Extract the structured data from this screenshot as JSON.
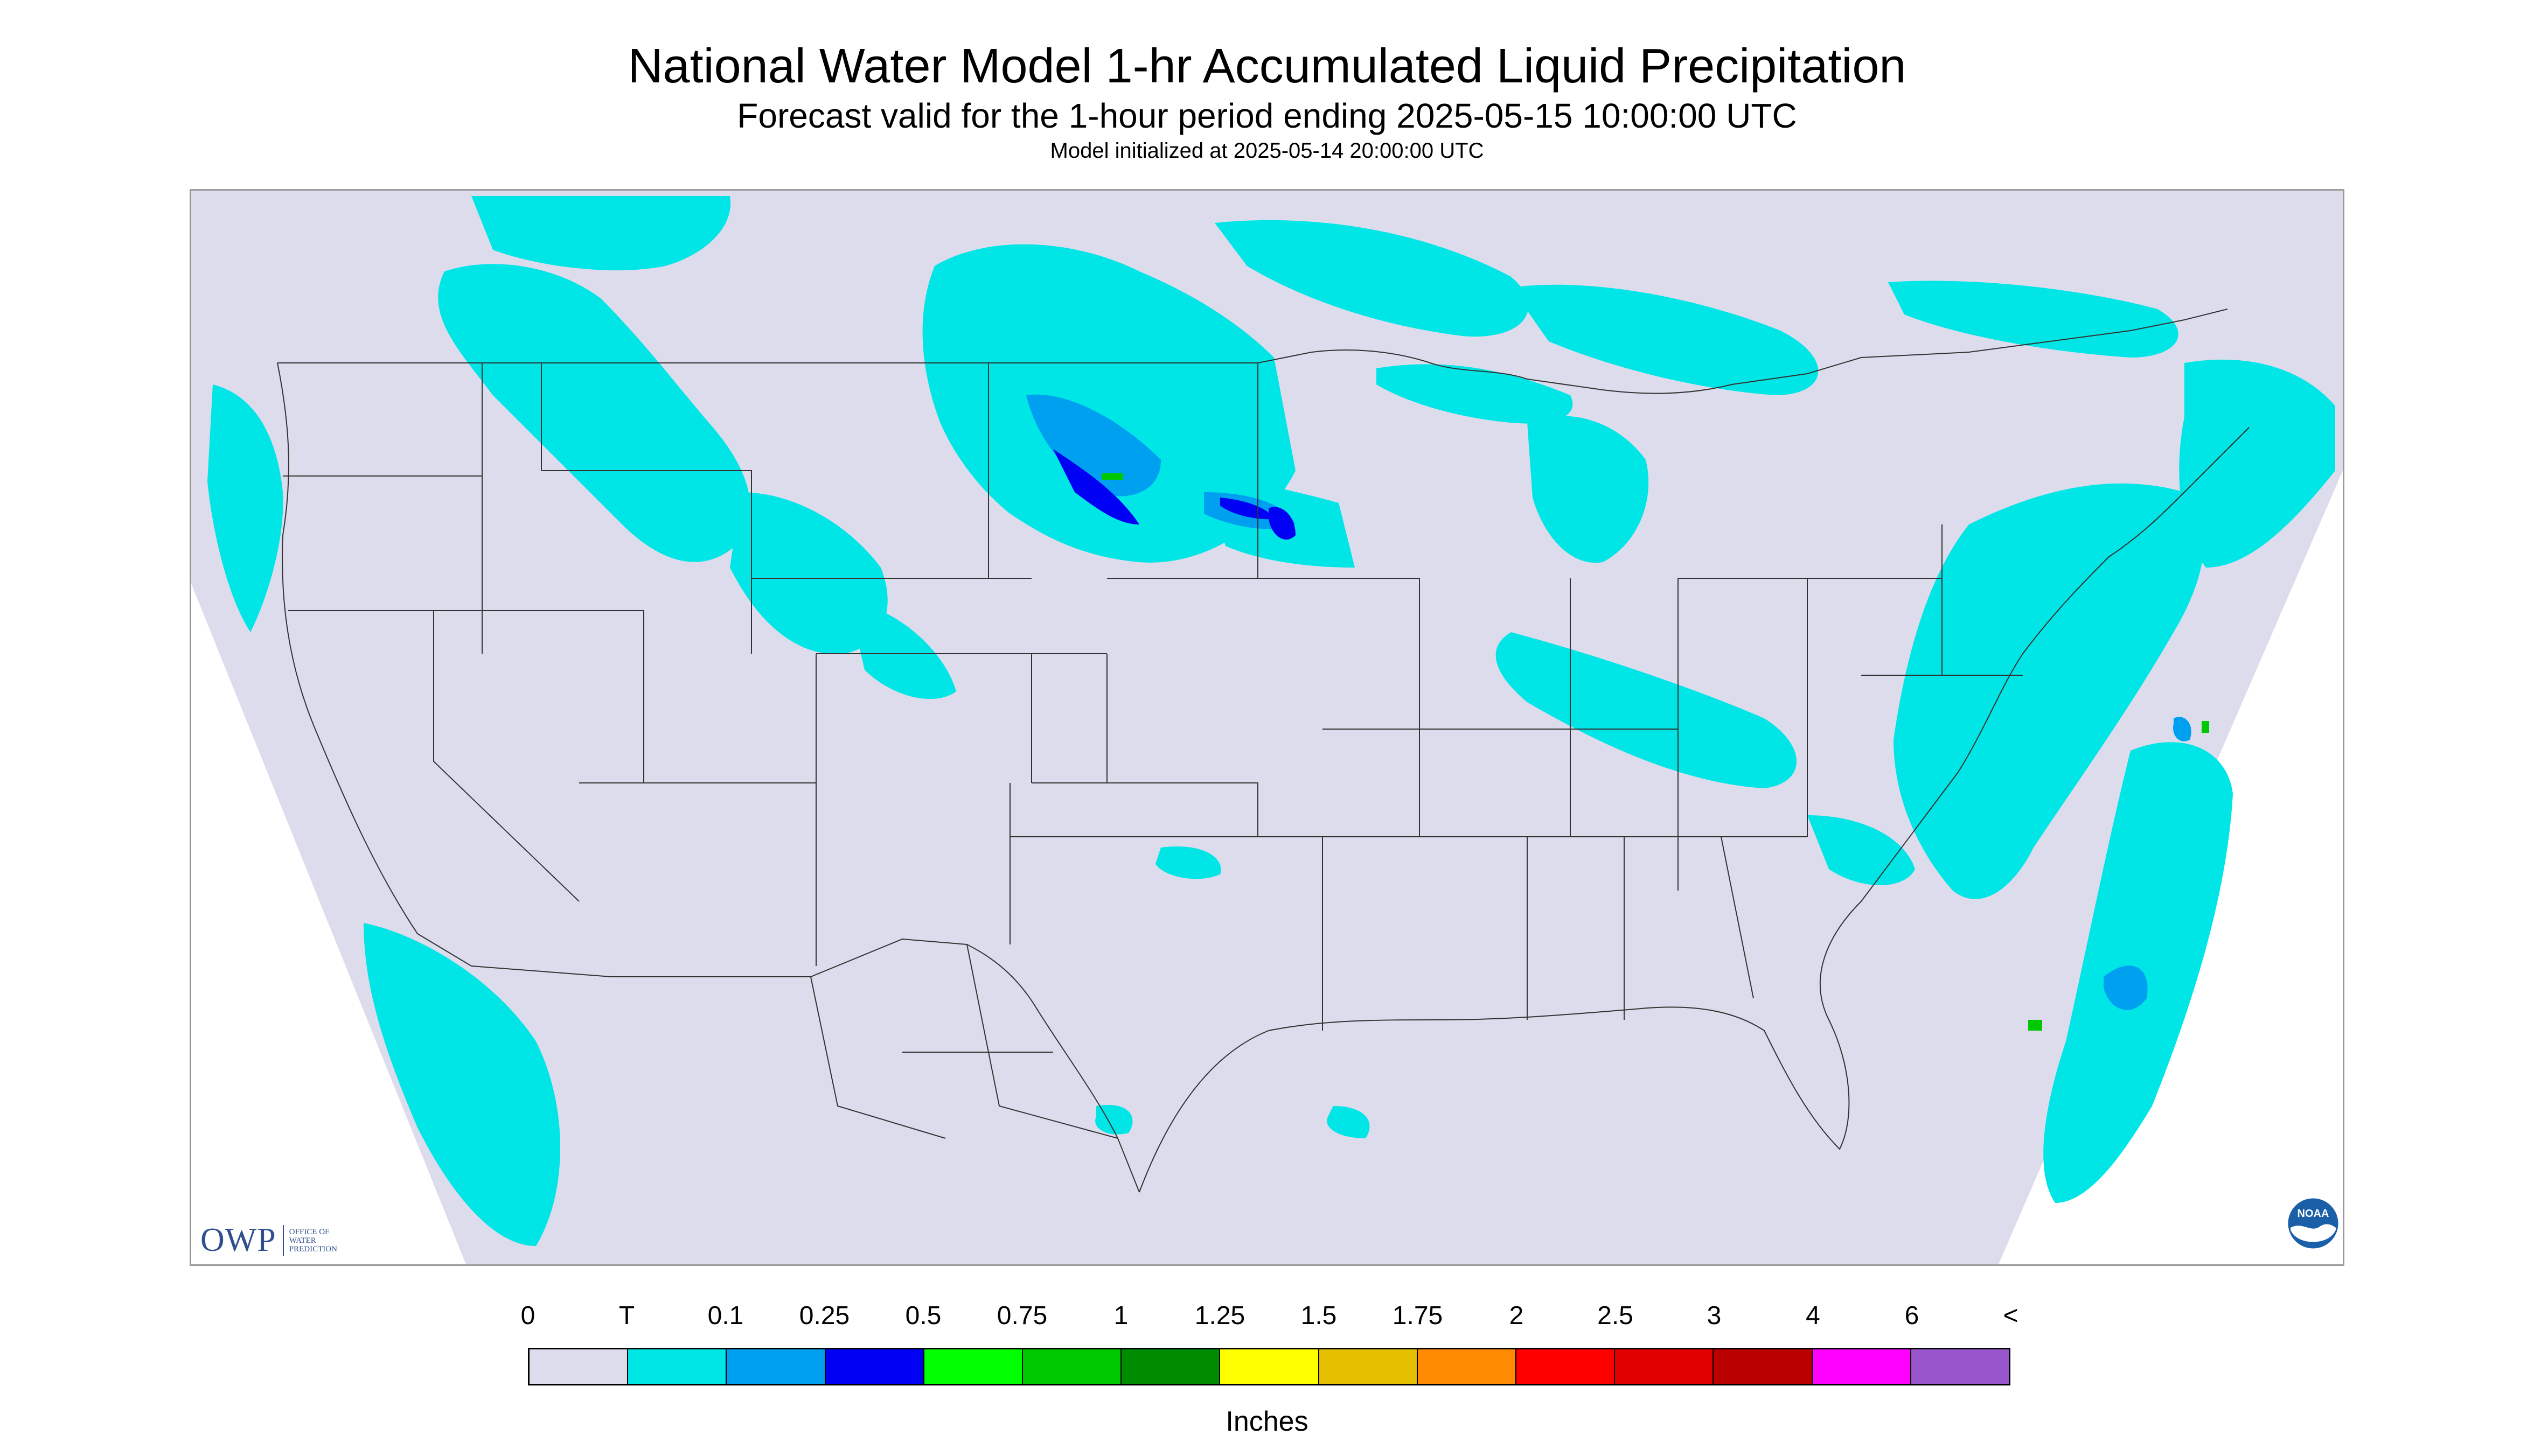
{
  "header": {
    "title": "National Water Model 1-hr Accumulated Liquid Precipitation",
    "subtitle": "Forecast valid for the 1-hour period ending 2025-05-15 10:00:00 UTC",
    "init": "Model initialized at 2025-05-14 20:00:00 UTC"
  },
  "logos": {
    "owp_main": "OWP",
    "owp_lines": [
      "OFFICE OF",
      "WATER",
      "PREDICTION"
    ],
    "noaa": "NOAA"
  },
  "legend": {
    "labels": [
      "0",
      "T",
      "0.1",
      "0.25",
      "0.5",
      "0.75",
      "1",
      "1.25",
      "1.5",
      "1.75",
      "2",
      "2.5",
      "3",
      "4",
      "6",
      "<"
    ],
    "colors": [
      "#dcdcec",
      "#00e5e5",
      "#00a0f0",
      "#0000f5",
      "#00ff00",
      "#00c800",
      "#008c00",
      "#ffff00",
      "#e5c000",
      "#ff8c00",
      "#ff0000",
      "#e00000",
      "#bb0000",
      "#ff00ff",
      "#9955cc"
    ],
    "units": "Inches"
  },
  "map": {
    "background": "#dcdcec",
    "outside": "#ffffff",
    "borders": "#333333"
  }
}
